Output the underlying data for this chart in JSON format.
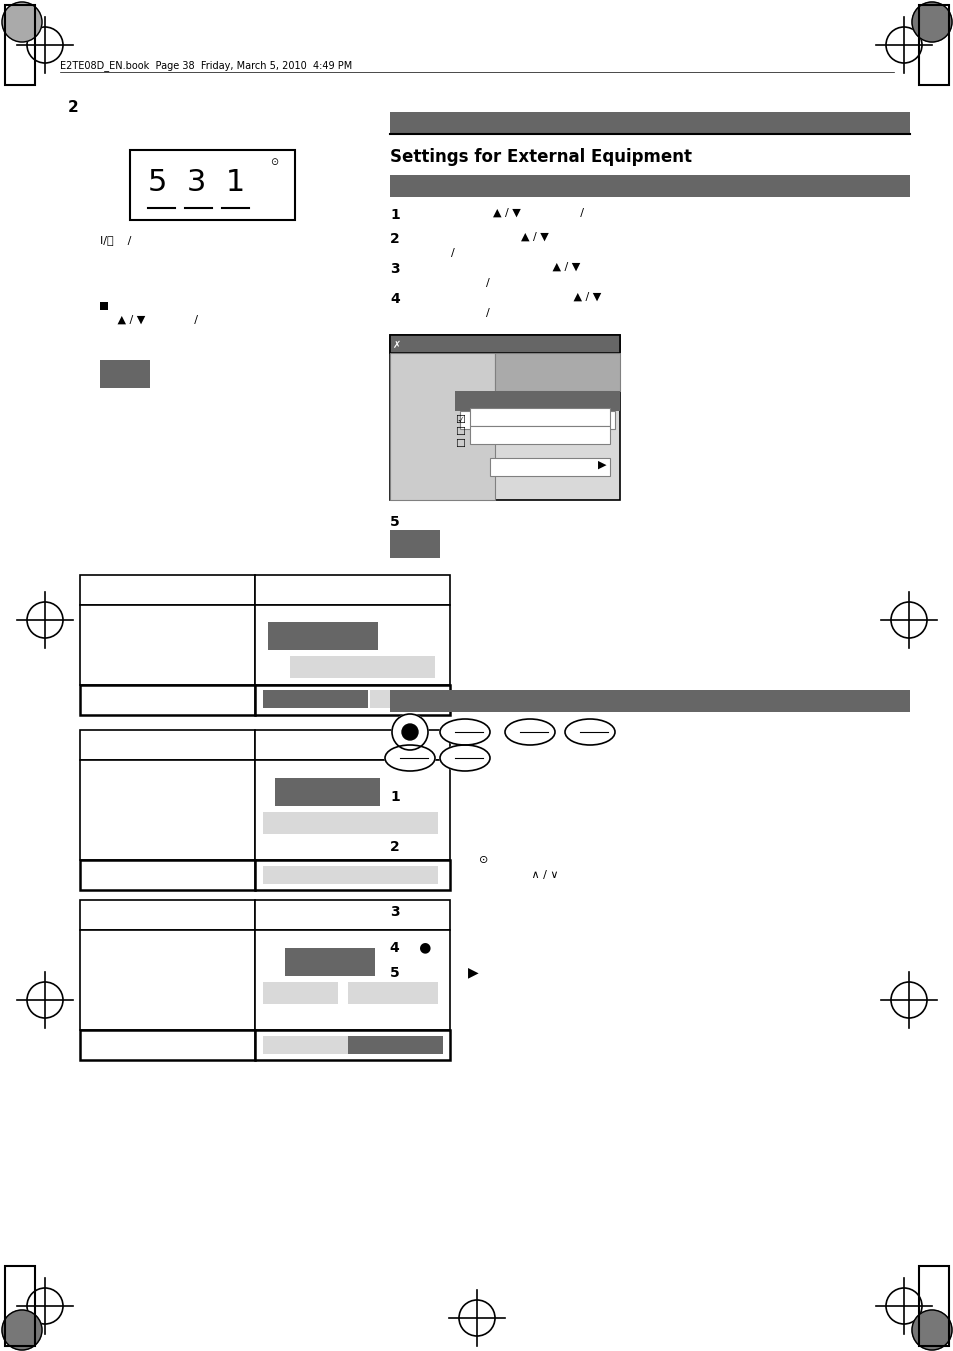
{
  "page_header": "E2TE08D_EN.book  Page 38  Friday, March 5, 2010  4:49 PM",
  "section_title": "Settings for External Equipment",
  "bg_color": "#ffffff",
  "dark_gray": "#666666",
  "medium_gray": "#888888",
  "light_gray": "#cccccc",
  "lighter_gray": "#d9d9d9",
  "darkest_bar": "#555555"
}
